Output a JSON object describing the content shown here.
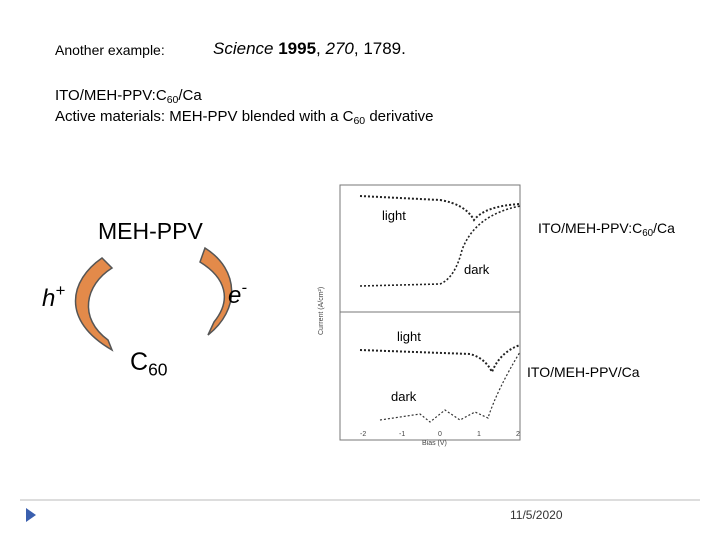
{
  "header": {
    "label": "Another example:",
    "journal": "Science",
    "year": "1995",
    "volume": "270",
    "pages": ", 1789."
  },
  "device": {
    "prefix": "ITO/MEH-PPV:C",
    "sub": "60",
    "suffix": "/Ca"
  },
  "materials": {
    "prefix": "Active materials: MEH-PPV blended with a C",
    "sub": "60",
    "suffix": "derivative"
  },
  "diagram": {
    "donor": "MEH-PPV",
    "hole": "h",
    "hole_sup": "+",
    "electron": "e",
    "electron_sup": "-",
    "acceptor": "C",
    "acceptor_sub": "60"
  },
  "figure": {
    "top": {
      "light": "light",
      "dark": "dark",
      "device": {
        "prefix": "ITO/MEH-PPV:C",
        "sub": "60",
        "suffix": "/Ca"
      }
    },
    "bottom": {
      "light": "light",
      "dark": "dark",
      "device": "ITO/MEH-PPV/Ca"
    },
    "y_label": "Current (A/cm²)",
    "x_label": "Bias (V)",
    "x_ticks": [
      "-2",
      "-1",
      "0",
      "1",
      "2"
    ]
  },
  "footer": {
    "date": "11/5/2020"
  }
}
